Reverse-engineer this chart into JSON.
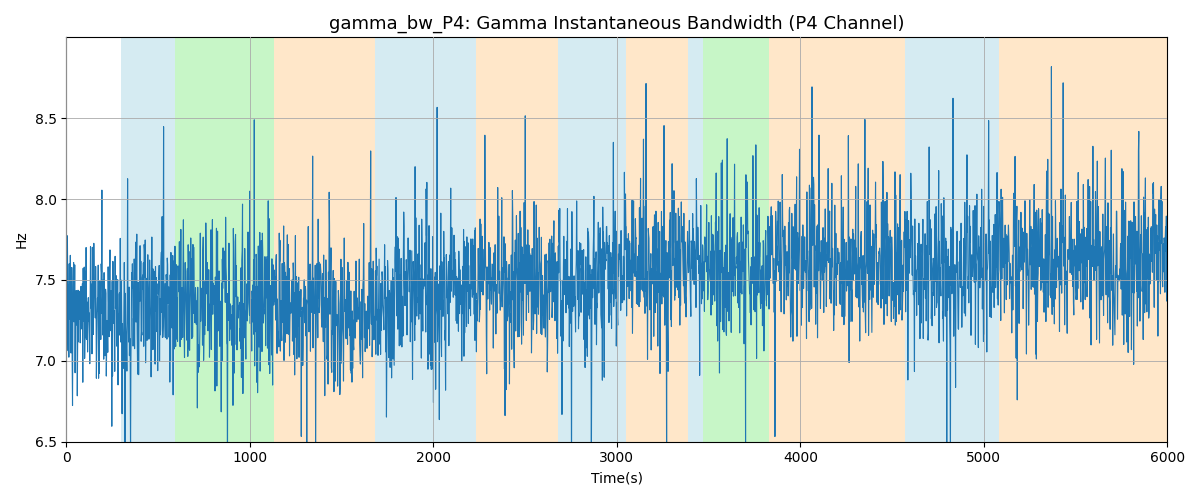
{
  "title": "gamma_bw_P4: Gamma Instantaneous Bandwidth (P4 Channel)",
  "xlabel": "Time(s)",
  "ylabel": "Hz",
  "xlim": [
    0,
    6000
  ],
  "ylim": [
    6.5,
    9.0
  ],
  "bg_bands": [
    {
      "xmin": 300,
      "xmax": 590,
      "color": "#add8e6",
      "alpha": 0.5
    },
    {
      "xmin": 590,
      "xmax": 1130,
      "color": "#90ee90",
      "alpha": 0.5
    },
    {
      "xmin": 1130,
      "xmax": 1680,
      "color": "#ffd59e",
      "alpha": 0.55
    },
    {
      "xmin": 1680,
      "xmax": 2230,
      "color": "#add8e6",
      "alpha": 0.5
    },
    {
      "xmin": 2230,
      "xmax": 2680,
      "color": "#ffd59e",
      "alpha": 0.55
    },
    {
      "xmin": 2680,
      "xmax": 3050,
      "color": "#add8e6",
      "alpha": 0.5
    },
    {
      "xmin": 3050,
      "xmax": 3390,
      "color": "#ffd59e",
      "alpha": 0.55
    },
    {
      "xmin": 3390,
      "xmax": 3470,
      "color": "#add8e6",
      "alpha": 0.5
    },
    {
      "xmin": 3470,
      "xmax": 3830,
      "color": "#90ee90",
      "alpha": 0.5
    },
    {
      "xmin": 3830,
      "xmax": 4570,
      "color": "#ffd59e",
      "alpha": 0.55
    },
    {
      "xmin": 4570,
      "xmax": 5080,
      "color": "#add8e6",
      "alpha": 0.5
    },
    {
      "xmin": 5080,
      "xmax": 6000,
      "color": "#ffd59e",
      "alpha": 0.55
    }
  ],
  "line_color": "#1f77b4",
  "line_width": 0.8,
  "grid_color": "#aaaaaa",
  "figsize": [
    12.0,
    5.0
  ],
  "dpi": 100,
  "seed": 42,
  "n_points": 3000,
  "signal_mean": 7.5,
  "signal_std": 0.22,
  "spike_std": 0.55,
  "spike_prob": 0.04,
  "title_fontsize": 13
}
